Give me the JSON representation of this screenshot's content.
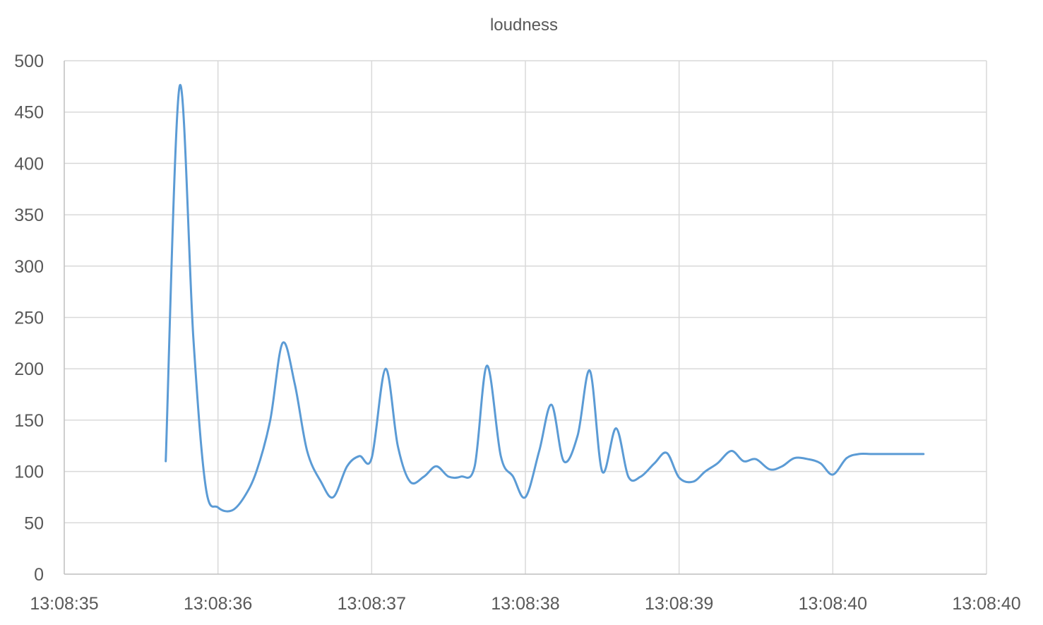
{
  "chart_data": {
    "type": "line",
    "title": "loudness",
    "xlabel": "",
    "ylabel": "",
    "x_axis": {
      "min": "13:08:35",
      "max": "13:08:40",
      "ticks": [
        "13:08:35",
        "13:08:36",
        "13:08:37",
        "13:08:38",
        "13:08:39",
        "13:08:40",
        "13:08:40"
      ]
    },
    "y_axis": {
      "min": 0,
      "max": 500,
      "ticks": [
        "0",
        "50",
        "100",
        "150",
        "200",
        "250",
        "300",
        "350",
        "400",
        "450",
        "500"
      ]
    },
    "grid": true,
    "legend": "none",
    "smooth": true,
    "series": [
      {
        "color": "#5b9bd5",
        "x": [
          "13:08:35.66",
          "13:08:35.75",
          "13:08:35.84",
          "13:08:35.92",
          "13:08:36.00",
          "13:08:36.09",
          "13:08:36.17",
          "13:08:36.25",
          "13:08:36.34",
          "13:08:36.42",
          "13:08:36.50",
          "13:08:36.58",
          "13:08:36.67",
          "13:08:36.75",
          "13:08:36.84",
          "13:08:36.92",
          "13:08:37.00",
          "13:08:37.09",
          "13:08:37.17",
          "13:08:37.25",
          "13:08:37.34",
          "13:08:37.42",
          "13:08:37.50",
          "13:08:37.58",
          "13:08:37.67",
          "13:08:37.75",
          "13:08:37.84",
          "13:08:37.92",
          "13:08:38.00",
          "13:08:38.09",
          "13:08:38.17",
          "13:08:38.25",
          "13:08:38.34",
          "13:08:38.42",
          "13:08:38.50",
          "13:08:38.59",
          "13:08:38.67",
          "13:08:38.75",
          "13:08:38.84",
          "13:08:38.92",
          "13:08:39.00",
          "13:08:39.09",
          "13:08:39.17",
          "13:08:39.25",
          "13:08:39.34",
          "13:08:39.42",
          "13:08:39.50",
          "13:08:39.59",
          "13:08:39.67",
          "13:08:39.75",
          "13:08:39.84",
          "13:08:39.92",
          "13:08:40.00",
          "13:08:40.09",
          "13:08:40.17",
          "13:08:40.25",
          "13:08:40.34",
          "13:08:40.42",
          "13:08:40.50",
          "13:08:40.59"
        ],
        "y": [
          110,
          475,
          230,
          85,
          65,
          62,
          75,
          100,
          150,
          225,
          185,
          120,
          90,
          75,
          105,
          115,
          113,
          200,
          125,
          90,
          95,
          105,
          95,
          95,
          105,
          203,
          115,
          95,
          75,
          120,
          165,
          110,
          135,
          198,
          100,
          142,
          95,
          95,
          108,
          118,
          94,
          90,
          100,
          108,
          120,
          110,
          112,
          102,
          105,
          113,
          112,
          108,
          97,
          113,
          117,
          117,
          117,
          117,
          117,
          117
        ]
      }
    ]
  }
}
